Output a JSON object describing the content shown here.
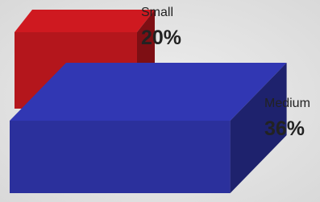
{
  "chart_data": {
    "type": "bar",
    "categories": [
      "Small",
      "Medium"
    ],
    "values": [
      20,
      36
    ],
    "value_labels": [
      "20%",
      "36%"
    ],
    "colors": [
      "#b4161c",
      "#2b309c"
    ]
  }
}
